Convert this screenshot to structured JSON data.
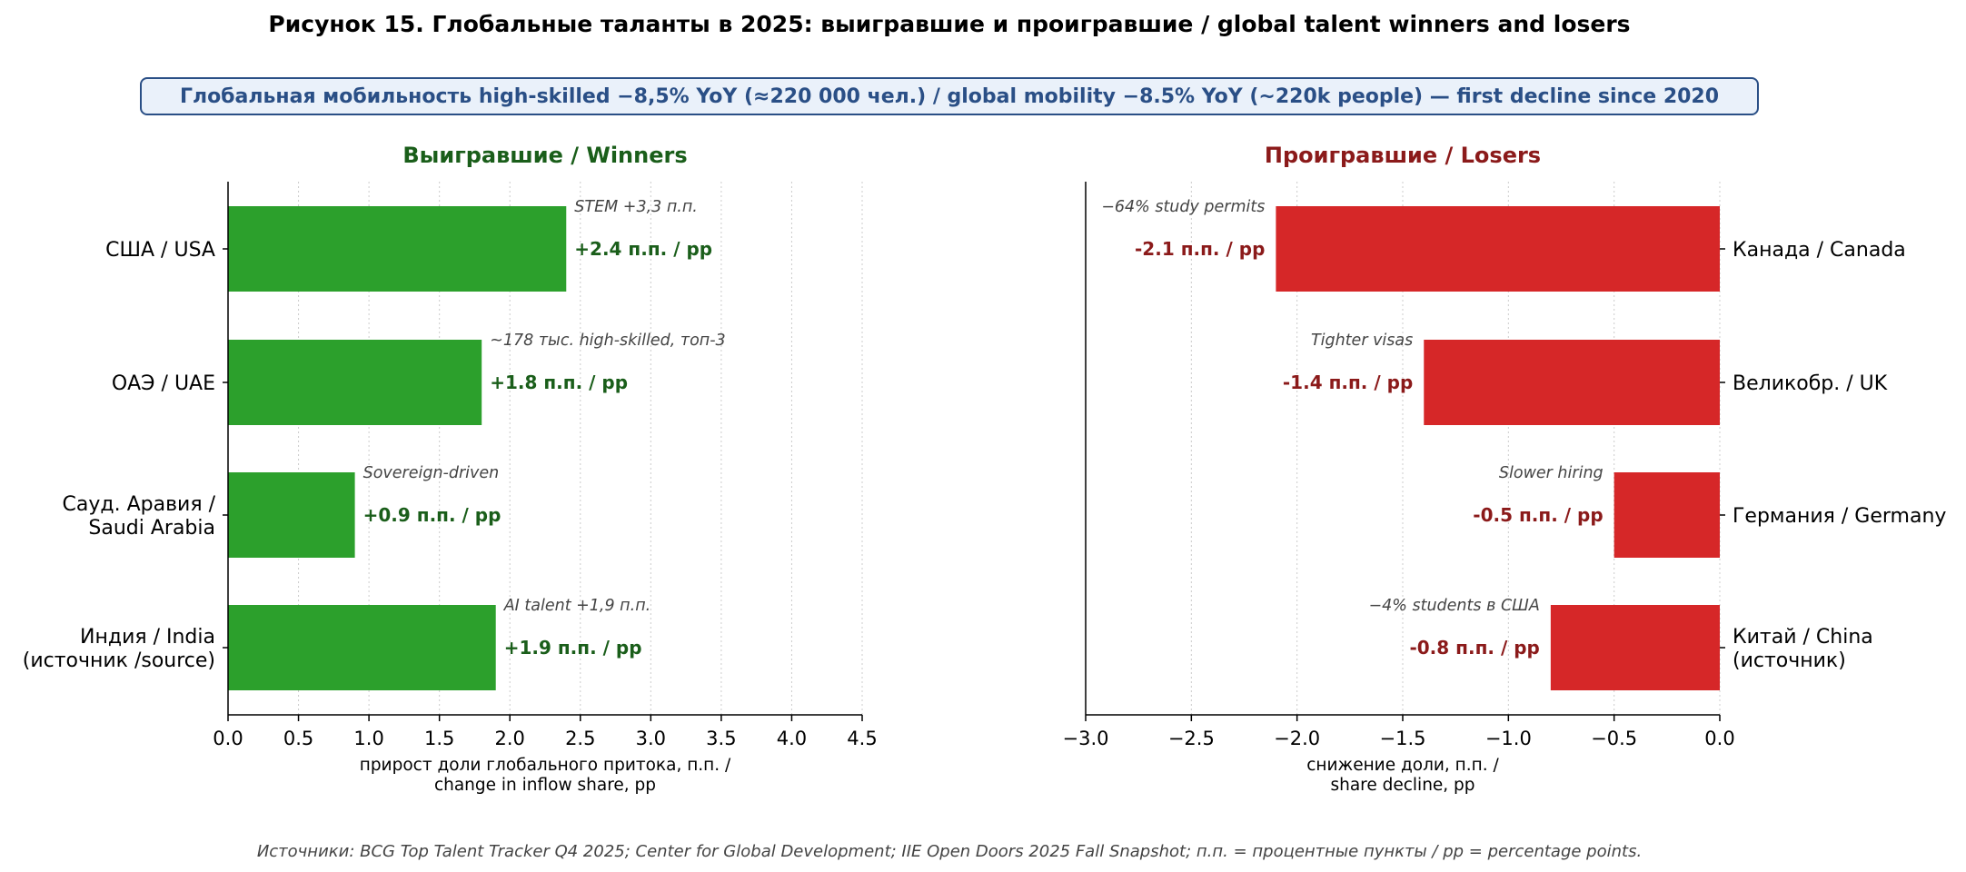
{
  "figure": {
    "title": "Рисунок 15. Глобальные таланты в 2025: выигравшие и проигравшие / global talent winners and losers",
    "banner": "Глобальная мобильность high-skilled −8,5% YoY (≈220 000 чел.) / global mobility −8.5% YoY (~220k people) — first decline since 2020",
    "source": "Источники: BCG Top Talent Tracker Q4 2025; Center for Global Development; IIE Open Doors 2025 Fall Snapshot; п.п. = процентные пункты / pp = percentage points."
  },
  "colors": {
    "winners_bar": "#2ca02c",
    "winners_text": "#1a5e1a",
    "losers_bar": "#d62728",
    "losers_text": "#8b1a1a",
    "banner_fill": "#eaf1fa",
    "banner_border": "#2a4f86",
    "grid": "#cccccc"
  },
  "chart_data": [
    {
      "type": "bar",
      "orientation": "horizontal",
      "title": "Выигравшие / Winners",
      "xlabel_lines": [
        "прирост доли глобального притока, п.п. /",
        "change in inflow share, pp"
      ],
      "xlim": [
        0,
        4.5
      ],
      "xticks": [
        0.0,
        0.5,
        1.0,
        1.5,
        2.0,
        2.5,
        3.0,
        3.5,
        4.0,
        4.5
      ],
      "xtick_labels": [
        "0.0",
        "0.5",
        "1.0",
        "1.5",
        "2.0",
        "2.5",
        "3.0",
        "3.5",
        "4.0",
        "4.5"
      ],
      "grid": "x-dotted",
      "categories": [
        [
          "США / USA"
        ],
        [
          "ОАЭ / UAE"
        ],
        [
          "Сауд. Аравия /",
          "Saudi Arabia"
        ],
        [
          "Индия / India",
          "(источник /source)"
        ]
      ],
      "values": [
        2.4,
        1.8,
        0.9,
        1.9
      ],
      "value_labels": [
        "+2.4 п.п. / pp",
        "+1.8 п.п. / pp",
        "+0.9 п.п. / pp",
        "+1.9 п.п. / pp"
      ],
      "annotations": [
        "STEM +3,3 п.п.",
        "~178 тыс. high-skilled, топ-3",
        "Sovereign-driven",
        "AI talent +1,9 п.п."
      ]
    },
    {
      "type": "bar",
      "orientation": "horizontal",
      "title": "Проигравшие / Losers",
      "xlabel_lines": [
        "снижение доли, п.п. /",
        "share decline, pp"
      ],
      "xlim": [
        -3.0,
        0.0
      ],
      "xticks": [
        -3.0,
        -2.5,
        -2.0,
        -1.5,
        -1.0,
        -0.5,
        0.0
      ],
      "xtick_labels": [
        "−3.0",
        "−2.5",
        "−2.0",
        "−1.5",
        "−1.0",
        "−0.5",
        "0.0"
      ],
      "grid": "x-dotted",
      "categories": [
        [
          "Канада / Canada"
        ],
        [
          "Великобр. / UK"
        ],
        [
          "Германия / Germany"
        ],
        [
          "Китай / China",
          "(источник)"
        ]
      ],
      "values": [
        -2.1,
        -1.4,
        -0.5,
        -0.8
      ],
      "value_labels": [
        "-2.1 п.п. / pp",
        "-1.4 п.п. / pp",
        "-0.5 п.п. / pp",
        "-0.8 п.п. / pp"
      ],
      "annotations": [
        "−64% study permits",
        "Tighter visas",
        "Slower hiring",
        "−4% students в США"
      ]
    }
  ]
}
